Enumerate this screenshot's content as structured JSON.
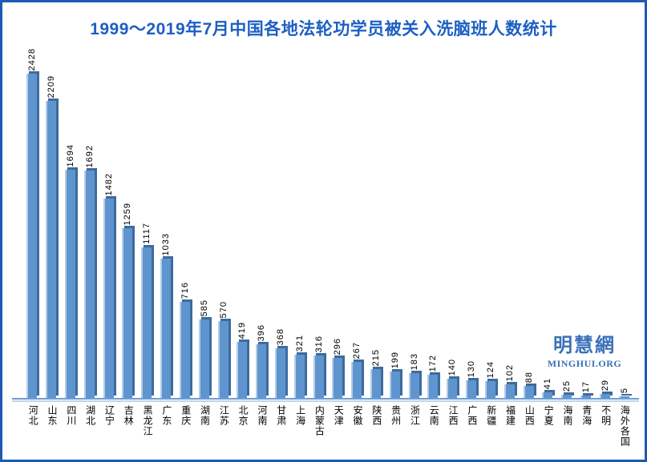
{
  "title": "1999～2019年7月中国各地法轮功学员被关入洗脑班人数统计",
  "logo": {
    "cn": "明慧網",
    "en": "MINGHUI.ORG"
  },
  "colors": {
    "title_blue": "#1C5FC2",
    "frame_blue": "#1E5AB4",
    "bar_main": "#5F95CF",
    "bar_highlight": "#B3CDE9",
    "bar_shadow": "#3D6B9D",
    "axis_line": "#6D9CD4",
    "logo_blue": "#3A70B8",
    "label_black": "#000000"
  },
  "chart_data": {
    "type": "bar",
    "title": "1999～2019年7月中国各地法轮功学员被关入洗脑班人数统计",
    "categories": [
      "河北",
      "山东",
      "四川",
      "湖北",
      "辽宁",
      "吉林",
      "黑龙江",
      "广东",
      "重庆",
      "湖南",
      "江苏",
      "北京",
      "河南",
      "甘肃",
      "上海",
      "内蒙古",
      "天津",
      "安徽",
      "陕西",
      "贵州",
      "浙江",
      "云南",
      "江西",
      "广西",
      "新疆",
      "福建",
      "山西",
      "宁夏",
      "海南",
      "青海",
      "不明",
      "海外各国"
    ],
    "values": [
      2428,
      2209,
      1694,
      1692,
      1482,
      1259,
      1117,
      1033,
      716,
      585,
      570,
      419,
      396,
      368,
      321,
      316,
      296,
      267,
      215,
      199,
      183,
      172,
      140,
      130,
      124,
      102,
      88,
      41,
      25,
      17,
      29,
      5
    ],
    "xlabel": "",
    "ylabel": "",
    "ylim": [
      0,
      2500
    ],
    "grid": false,
    "legend": false,
    "value_labels": "rotated-90-above-bars",
    "category_labels": "vertical-upright"
  }
}
